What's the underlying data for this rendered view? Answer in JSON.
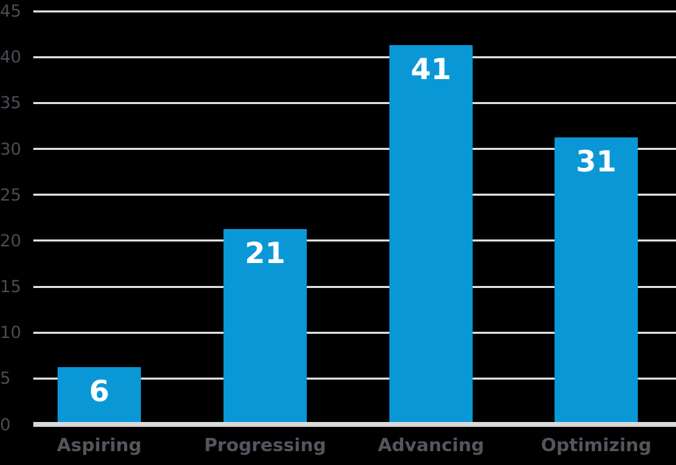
{
  "chart_data": {
    "type": "bar",
    "categories": [
      "Aspiring",
      "Progressing",
      "Advancing",
      "Optimizing"
    ],
    "values": [
      6,
      21,
      41,
      31
    ],
    "title": "",
    "xlabel": "",
    "ylabel": "",
    "ylim": [
      0,
      45
    ],
    "yticks": [
      0,
      5,
      10,
      15,
      20,
      25,
      30,
      35,
      40,
      45
    ],
    "grid": true,
    "legend": false,
    "value_labels_inside_bars": true,
    "colors": {
      "background": "#000000",
      "bar": "#0a97d6",
      "gridline": "#dcdcdc",
      "baseline": "#d9d9d9",
      "ytick_text": "#4b4d54",
      "category_text": "#54565e",
      "value_label_text": "#ffffff"
    }
  }
}
